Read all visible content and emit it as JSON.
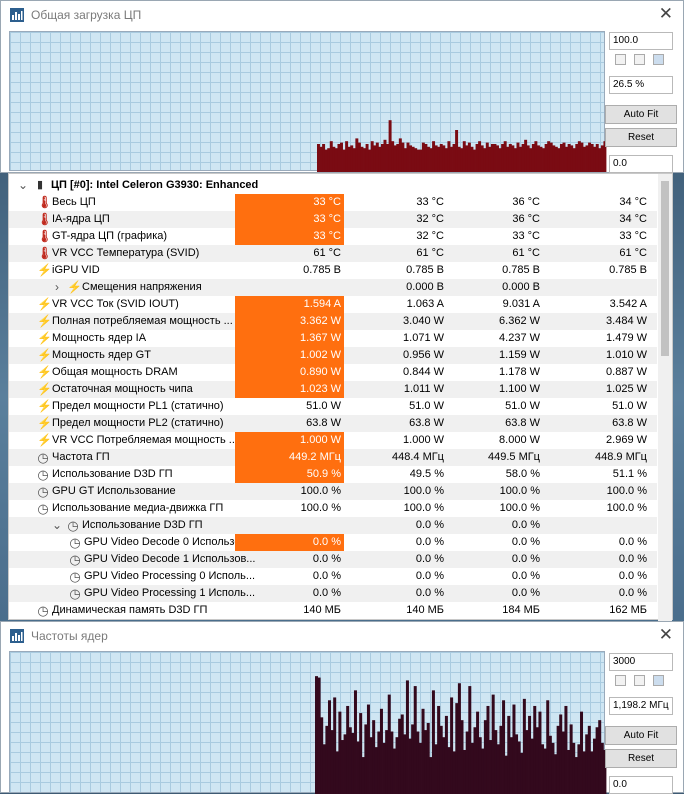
{
  "top_window": {
    "title": "Общая загрузка ЦП",
    "max_value": "100.0",
    "current_value": "26.5 %",
    "min_value": "0.0",
    "autofit_label": "Auto Fit",
    "reset_label": "Reset",
    "graph_color": "#7a0b13",
    "graph_levels": [
      20,
      18,
      20,
      16,
      17,
      22,
      18,
      17,
      20,
      21,
      16,
      22,
      18,
      19,
      17,
      24,
      21,
      18,
      17,
      20,
      16,
      22,
      19,
      21,
      18,
      20,
      23,
      20,
      37,
      22,
      19,
      20,
      24,
      21,
      17,
      21,
      19,
      18,
      17,
      16,
      16,
      21,
      20,
      18,
      17,
      22,
      19,
      18,
      20,
      19,
      17,
      22,
      18,
      20,
      30,
      18,
      17,
      22,
      19,
      21,
      18,
      16,
      20,
      22,
      19,
      17,
      21,
      18,
      20,
      20,
      19,
      17,
      20,
      22,
      18,
      20,
      19,
      17,
      21,
      18,
      20,
      23,
      19,
      17,
      20,
      22,
      19,
      18,
      17,
      20,
      22,
      21,
      19,
      18,
      17,
      20,
      21,
      18,
      20,
      19,
      17,
      20,
      22,
      21,
      18,
      19,
      21,
      20,
      18,
      20,
      17,
      19,
      22
    ]
  },
  "sensor_group": {
    "header": "ЦП [#0]: Intel Celeron G3930: Enhanced",
    "rows": [
      {
        "icon": "therm",
        "label": "Весь ЦП",
        "indent": 0,
        "v1": "33 °C",
        "v2": "33 °C",
        "v3": "36 °C",
        "v4": "34 °C",
        "hl": true
      },
      {
        "icon": "therm",
        "label": "IA-ядра ЦП",
        "indent": 0,
        "v1": "33 °C",
        "v2": "32 °C",
        "v3": "36 °C",
        "v4": "34 °C",
        "hl": true
      },
      {
        "icon": "therm",
        "label": "GT-ядра ЦП (графика)",
        "indent": 0,
        "v1": "33 °C",
        "v2": "32 °C",
        "v3": "33 °C",
        "v4": "33 °C",
        "hl": true
      },
      {
        "icon": "therm",
        "label": "VR VCC Температура (SVID)",
        "indent": 0,
        "v1": "61 °C",
        "v2": "61 °C",
        "v3": "61 °C",
        "v4": "61 °C",
        "hl": false
      },
      {
        "icon": "bolt",
        "label": "iGPU VID",
        "indent": 0,
        "v1": "0.785 В",
        "v2": "0.785 В",
        "v3": "0.785 В",
        "v4": "0.785 В",
        "hl": false
      },
      {
        "icon": "bolt",
        "label": "Смещения напряжения",
        "indent": 1,
        "expander": "›",
        "v1": "",
        "v2": "0.000 В",
        "v3": "0.000 В",
        "v4": "",
        "hl": false
      },
      {
        "icon": "bolt",
        "label": "VR VCC Ток (SVID IOUT)",
        "indent": 0,
        "v1": "1.594 A",
        "v2": "1.063 A",
        "v3": "9.031 A",
        "v4": "3.542 A",
        "hl": true
      },
      {
        "icon": "bolt",
        "label": "Полная потребляемая мощность ...",
        "indent": 0,
        "v1": "3.362 W",
        "v2": "3.040 W",
        "v3": "6.362 W",
        "v4": "3.484 W",
        "hl": true
      },
      {
        "icon": "bolt",
        "label": "Мощность ядер IA",
        "indent": 0,
        "v1": "1.367 W",
        "v2": "1.071 W",
        "v3": "4.237 W",
        "v4": "1.479 W",
        "hl": true
      },
      {
        "icon": "bolt",
        "label": "Мощность ядер GT",
        "indent": 0,
        "v1": "1.002 W",
        "v2": "0.956 W",
        "v3": "1.159 W",
        "v4": "1.010 W",
        "hl": true
      },
      {
        "icon": "bolt",
        "label": "Общая мощность DRAM",
        "indent": 0,
        "v1": "0.890 W",
        "v2": "0.844 W",
        "v3": "1.178 W",
        "v4": "0.887 W",
        "hl": true
      },
      {
        "icon": "bolt",
        "label": "Остаточная мощность чипа",
        "indent": 0,
        "v1": "1.023 W",
        "v2": "1.011 W",
        "v3": "1.100 W",
        "v4": "1.025 W",
        "hl": true
      },
      {
        "icon": "bolt",
        "label": "Предел мощности PL1 (статично)",
        "indent": 0,
        "v1": "51.0 W",
        "v2": "51.0 W",
        "v3": "51.0 W",
        "v4": "51.0 W",
        "hl": false
      },
      {
        "icon": "bolt",
        "label": "Предел мощности PL2 (статично)",
        "indent": 0,
        "v1": "63.8 W",
        "v2": "63.8 W",
        "v3": "63.8 W",
        "v4": "63.8 W",
        "hl": false
      },
      {
        "icon": "bolt",
        "label": "VR VCC Потребляемая мощность ...",
        "indent": 0,
        "v1": "1.000 W",
        "v2": "1.000 W",
        "v3": "8.000 W",
        "v4": "2.969 W",
        "hl": true
      },
      {
        "icon": "clock",
        "label": "Частота ГП",
        "indent": 0,
        "v1": "449.2 МГц",
        "v2": "448.4 МГц",
        "v3": "449.5 МГц",
        "v4": "448.9 МГц",
        "hl": true
      },
      {
        "icon": "clock",
        "label": "Использование D3D ГП",
        "indent": 0,
        "v1": "50.9 %",
        "v2": "49.5 %",
        "v3": "58.0 %",
        "v4": "51.1 %",
        "hl": true
      },
      {
        "icon": "clock",
        "label": "GPU GT Использование",
        "indent": 0,
        "v1": "100.0 %",
        "v2": "100.0 %",
        "v3": "100.0 %",
        "v4": "100.0 %",
        "hl": false
      },
      {
        "icon": "clock",
        "label": "Использование медиа-движка ГП",
        "indent": 0,
        "v1": "100.0 %",
        "v2": "100.0 %",
        "v3": "100.0 %",
        "v4": "100.0 %",
        "hl": false
      },
      {
        "icon": "clock",
        "label": "Использование D3D ГП",
        "indent": 1,
        "expander": "⌄",
        "v1": "",
        "v2": "0.0 %",
        "v3": "0.0 %",
        "v4": "",
        "hl": false
      },
      {
        "icon": "clock",
        "label": "GPU Video Decode 0 Использов...",
        "indent": 2,
        "v1": "0.0 %",
        "v2": "0.0 %",
        "v3": "0.0 %",
        "v4": "0.0 %",
        "hl": true
      },
      {
        "icon": "clock",
        "label": "GPU Video Decode 1 Использов...",
        "indent": 2,
        "v1": "0.0 %",
        "v2": "0.0 %",
        "v3": "0.0 %",
        "v4": "0.0 %",
        "hl": false
      },
      {
        "icon": "clock",
        "label": "GPU Video Processing 0 Исполь...",
        "indent": 2,
        "v1": "0.0 %",
        "v2": "0.0 %",
        "v3": "0.0 %",
        "v4": "0.0 %",
        "hl": false
      },
      {
        "icon": "clock",
        "label": "GPU Video Processing 1 Исполь...",
        "indent": 2,
        "v1": "0.0 %",
        "v2": "0.0 %",
        "v3": "0.0 %",
        "v4": "0.0 %",
        "hl": false
      },
      {
        "icon": "clock",
        "label": "Динамическая память D3D ГП",
        "indent": 0,
        "v1": "140 МБ",
        "v2": "140 МБ",
        "v3": "184 МБ",
        "v4": "162 МБ",
        "hl": false
      }
    ]
  },
  "bottom_window": {
    "title": "Частоты ядер",
    "max_value": "3000",
    "current_value": "1,198.2 МГц",
    "min_value": "0.0",
    "autofit_label": "Auto Fit",
    "reset_label": "Reset",
    "graph_color": "#33091d",
    "graph_levels": [
      83,
      82,
      54,
      35,
      48,
      66,
      45,
      68,
      30,
      58,
      38,
      42,
      62,
      47,
      43,
      73,
      37,
      57,
      26,
      49,
      63,
      40,
      52,
      33,
      44,
      60,
      36,
      45,
      70,
      44,
      32,
      40,
      53,
      56,
      42,
      80,
      39,
      49,
      76,
      44,
      36,
      60,
      45,
      50,
      26,
      73,
      35,
      62,
      48,
      40,
      55,
      33,
      68,
      30,
      64,
      78,
      52,
      31,
      44,
      76,
      36,
      47,
      58,
      40,
      32,
      52,
      62,
      38,
      70,
      45,
      35,
      48,
      66,
      27,
      55,
      40,
      63,
      42,
      37,
      29,
      67,
      45,
      55,
      39,
      62,
      47,
      58,
      35,
      32,
      66,
      41,
      36,
      28,
      48,
      56,
      44,
      62,
      31,
      49,
      36,
      26,
      35,
      58,
      30,
      42,
      48,
      30,
      39,
      47,
      52,
      36,
      31
    ]
  }
}
